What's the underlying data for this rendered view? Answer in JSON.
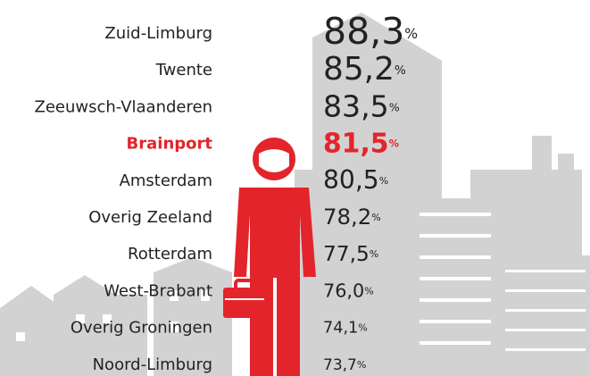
{
  "chart_data": {
    "type": "text-ranking",
    "categories": [
      "Zuid-Limburg",
      "Twente",
      "Zeeuwsch-Vlaanderen",
      "Brainport",
      "Amsterdam",
      "Overig Zeeland",
      "Rotterdam",
      "West-Brabant",
      "Overig Groningen",
      "Noord-Limburg"
    ],
    "values": [
      88.3,
      85.2,
      83.5,
      81.5,
      80.5,
      78.2,
      77.5,
      76.0,
      74.1,
      73.7
    ],
    "value_labels": [
      "88,3",
      "85,2",
      "83,5",
      "81,5",
      "80,5",
      "78,2",
      "77,5",
      "76,0",
      "74,1",
      "73,7"
    ],
    "unit": "%",
    "color": "#222222",
    "highlight": "Brainport",
    "highlight_color": "#e4242b"
  }
}
